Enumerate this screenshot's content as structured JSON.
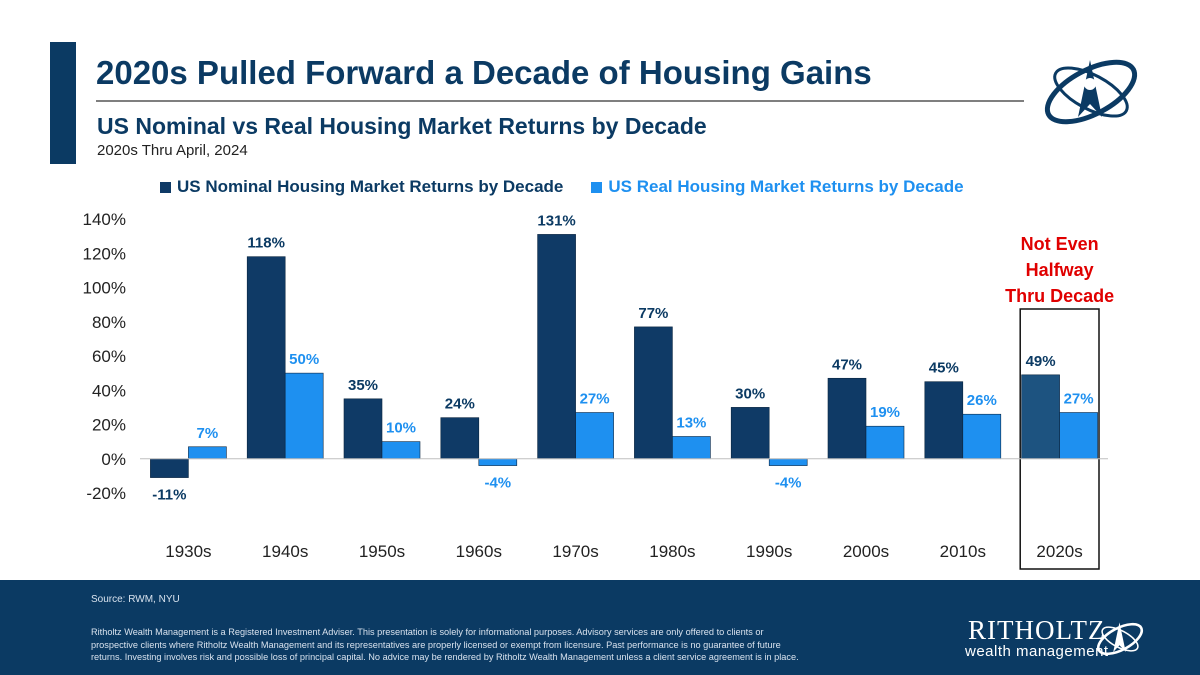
{
  "header": {
    "title": "2020s Pulled Forward a Decade of Housing Gains",
    "subtitle": "US Nominal vs Real Housing Market Returns by Decade",
    "note": "2020s Thru April, 2024"
  },
  "colors": {
    "navy": "#0b3a63",
    "nominal": "#0f3a66",
    "nominal_highlight": "#1d5380",
    "real": "#1e90f0",
    "annotation": "#e00000"
  },
  "footer": {
    "source": "Source: RWM, NYU",
    "disclaimer": "Ritholtz Wealth Management is a Registered Investment Adviser. This presentation is solely for informational purposes. Advisory services are only offered to clients or prospective clients where Ritholtz Wealth Management and its representatives are properly licensed or exempt from licensure. Past performance is no guarantee of future returns. Investing involves risk and possible loss of principal capital. No advice may be rendered by Ritholtz Wealth Management unless a client service agreement is in place.",
    "brand_name": "RITHOLTZ",
    "brand_sub": "wealth management"
  },
  "chart_data": {
    "type": "bar",
    "title": "US Nominal vs Real Housing Market Returns by Decade",
    "categories": [
      "1930s",
      "1940s",
      "1950s",
      "1960s",
      "1970s",
      "1980s",
      "1990s",
      "2000s",
      "2010s",
      "2020s"
    ],
    "series": [
      {
        "name": "US Nominal Housing Market Returns by Decade",
        "values": [
          -11,
          118,
          35,
          24,
          131,
          77,
          30,
          47,
          45,
          49
        ]
      },
      {
        "name": "US Real Housing Market Returns by Decade",
        "values": [
          7,
          50,
          10,
          -4,
          27,
          13,
          -4,
          19,
          26,
          27
        ]
      }
    ],
    "ylim": [
      -20,
      140
    ],
    "yticks": [
      -20,
      0,
      20,
      40,
      60,
      80,
      100,
      120,
      140
    ],
    "tick_suffix": "%",
    "legend_position": "top",
    "highlight_category": "2020s",
    "annotation": [
      "Not Even",
      "Halfway",
      "Thru Decade"
    ],
    "xlabel": "",
    "ylabel": ""
  }
}
